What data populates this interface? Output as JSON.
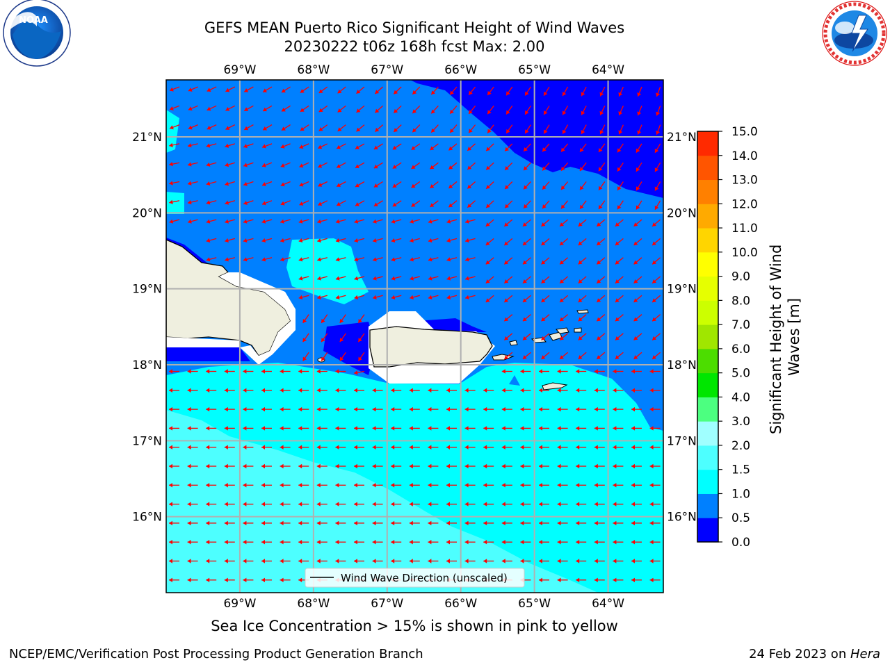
{
  "title": {
    "line1": "GEFS MEAN Puerto Rico Significant Height of Wind Waves",
    "line2": "20230222 t06z 168h fcst   Max: 2.00"
  },
  "logos": {
    "left": {
      "icon": "noaa-logo-icon",
      "text": "NOAA",
      "ring_text": "NATIONAL OCEANIC AND ATMOSPHERIC ADMINISTRATION · U.S. DEPARTMENT OF COMMERCE"
    },
    "right": {
      "icon": "nws-logo-icon",
      "ring_text": "NATIONAL WEATHER SERVICE"
    }
  },
  "map": {
    "lon_range": [
      -70,
      -63.25
    ],
    "lat_range": [
      15,
      21.75
    ],
    "lon_labels": [
      {
        "lon": -69,
        "label": "69°W"
      },
      {
        "lon": -68,
        "label": "68°W"
      },
      {
        "lon": -67,
        "label": "67°W"
      },
      {
        "lon": -66,
        "label": "66°W"
      },
      {
        "lon": -65,
        "label": "65°W"
      },
      {
        "lon": -64,
        "label": "64°W"
      }
    ],
    "lat_labels": [
      {
        "lat": 21,
        "label": "21°N"
      },
      {
        "lat": 20,
        "label": "20°N"
      },
      {
        "lat": 19,
        "label": "19°N"
      },
      {
        "lat": 18,
        "label": "18°N"
      },
      {
        "lat": 17,
        "label": "17°N"
      },
      {
        "lat": 16,
        "label": "16°N"
      }
    ],
    "legend_label": "Wind Wave Direction (unscaled)",
    "caption": "Sea Ice Concentration > 15% is shown in pink to yellow",
    "colors": {
      "ocean_0_05": "#0000ff",
      "ocean_05_10": "#0080ff",
      "ocean_10_15": "#00ffff",
      "ocean_15_20": "#4dffff",
      "land": "#efefdf",
      "arrow": "#ff0000",
      "grid": "#b0b0b0"
    }
  },
  "colorbar": {
    "label_line1": "Significant Height of Wind",
    "label_line2": "Waves [m]",
    "ticks": [
      "0.0",
      "0.5",
      "1.0",
      "1.5",
      "2.0",
      "3.0",
      "4.0",
      "5.0",
      "6.0",
      "7.0",
      "8.0",
      "9.0",
      "10.0",
      "11.0",
      "12.0",
      "13.0",
      "14.0",
      "15.0"
    ],
    "colors": [
      "#0000ff",
      "#0080ff",
      "#00ffff",
      "#4dffff",
      "#a0ffff",
      "#4cff80",
      "#00e600",
      "#4cdd00",
      "#a0e600",
      "#ccff00",
      "#e6ff00",
      "#ffff00",
      "#ffd500",
      "#ffaa00",
      "#ff8000",
      "#ff5500",
      "#ff2a00"
    ]
  },
  "footer": {
    "left": "NCEP/EMC/Verification Post Processing Product Generation Branch",
    "date": "24 Feb 2023 on ",
    "host": "Hera"
  }
}
